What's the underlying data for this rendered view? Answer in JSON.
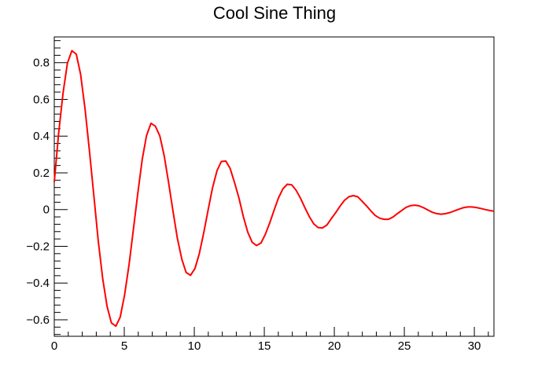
{
  "chart_data": {
    "type": "line",
    "title": "Cool Sine Thing",
    "xlabel": "",
    "ylabel": "",
    "xlim": [
      0,
      31.4
    ],
    "ylim": [
      -0.69,
      0.94
    ],
    "grid": false,
    "legend": "none",
    "x_major_ticks": [
      0,
      5,
      10,
      15,
      20,
      25,
      30
    ],
    "x_tick_labels": [
      "0",
      "5",
      "10",
      "15",
      "20",
      "25",
      "30"
    ],
    "y_major_ticks": [
      -0.6,
      -0.4,
      -0.2,
      0,
      0.2,
      0.4,
      0.6,
      0.8
    ],
    "y_tick_labels": [
      "−0.6",
      "−0.4",
      "−0.2",
      "0",
      "0.2",
      "0.4",
      "0.6",
      "0.8"
    ],
    "colors": {
      "line": "#ff0000",
      "axes": "#000000",
      "background": "#ffffff"
    },
    "series": [
      {
        "x": [
          0.0,
          0.31,
          0.63,
          0.94,
          1.26,
          1.57,
          1.88,
          2.2,
          2.51,
          2.83,
          3.14,
          3.46,
          3.77,
          4.08,
          4.4,
          4.71,
          5.02,
          5.34,
          5.65,
          5.97,
          6.28,
          6.59,
          6.91,
          7.22,
          7.54,
          7.85,
          8.16,
          8.48,
          8.79,
          9.11,
          9.42,
          9.73,
          10.05,
          10.36,
          10.68,
          10.99,
          11.3,
          11.62,
          11.93,
          12.25,
          12.56,
          12.87,
          13.19,
          13.5,
          13.82,
          14.13,
          14.44,
          14.76,
          15.07,
          15.39,
          15.7,
          16.01,
          16.33,
          16.64,
          16.96,
          17.27,
          17.58,
          17.9,
          18.21,
          18.53,
          18.84,
          19.15,
          19.47,
          19.78,
          20.1,
          20.41,
          20.72,
          21.04,
          21.35,
          21.67,
          21.98,
          22.29,
          22.61,
          22.92,
          23.24,
          23.55,
          23.86,
          24.18,
          24.49,
          24.81,
          25.12,
          25.43,
          25.75,
          26.06,
          26.38,
          26.69,
          27.0,
          27.32,
          27.63,
          27.95,
          28.26,
          28.57,
          28.89,
          29.2,
          29.52,
          29.83,
          30.14,
          30.46,
          30.77,
          31.09,
          31.4
        ],
        "y": [
          0.15,
          0.413,
          0.636,
          0.797,
          0.865,
          0.846,
          0.736,
          0.545,
          0.32,
          0.073,
          -0.17,
          -0.377,
          -0.526,
          -0.617,
          -0.635,
          -0.586,
          -0.465,
          -0.299,
          -0.108,
          0.092,
          0.272,
          0.403,
          0.47,
          0.454,
          0.401,
          0.292,
          0.148,
          -0.01,
          -0.156,
          -0.271,
          -0.343,
          -0.358,
          -0.321,
          -0.24,
          -0.125,
          -0.002,
          0.118,
          0.212,
          0.262,
          0.264,
          0.224,
          0.148,
          0.063,
          -0.037,
          -0.123,
          -0.178,
          -0.196,
          -0.182,
          -0.135,
          -0.072,
          -0.003,
          0.063,
          0.113,
          0.138,
          0.135,
          0.105,
          0.062,
          0.01,
          -0.038,
          -0.078,
          -0.098,
          -0.1,
          -0.084,
          -0.05,
          -0.017,
          0.019,
          0.05,
          0.07,
          0.076,
          0.07,
          0.046,
          0.021,
          -0.007,
          -0.032,
          -0.047,
          -0.053,
          -0.053,
          -0.041,
          -0.023,
          -0.005,
          0.012,
          0.021,
          0.024,
          0.02,
          0.01,
          -0.003,
          -0.015,
          -0.022,
          -0.025,
          -0.022,
          -0.016,
          -0.007,
          0.002,
          0.01,
          0.014,
          0.014,
          0.011,
          0.006,
          0.0,
          -0.005,
          -0.009
        ]
      }
    ]
  }
}
